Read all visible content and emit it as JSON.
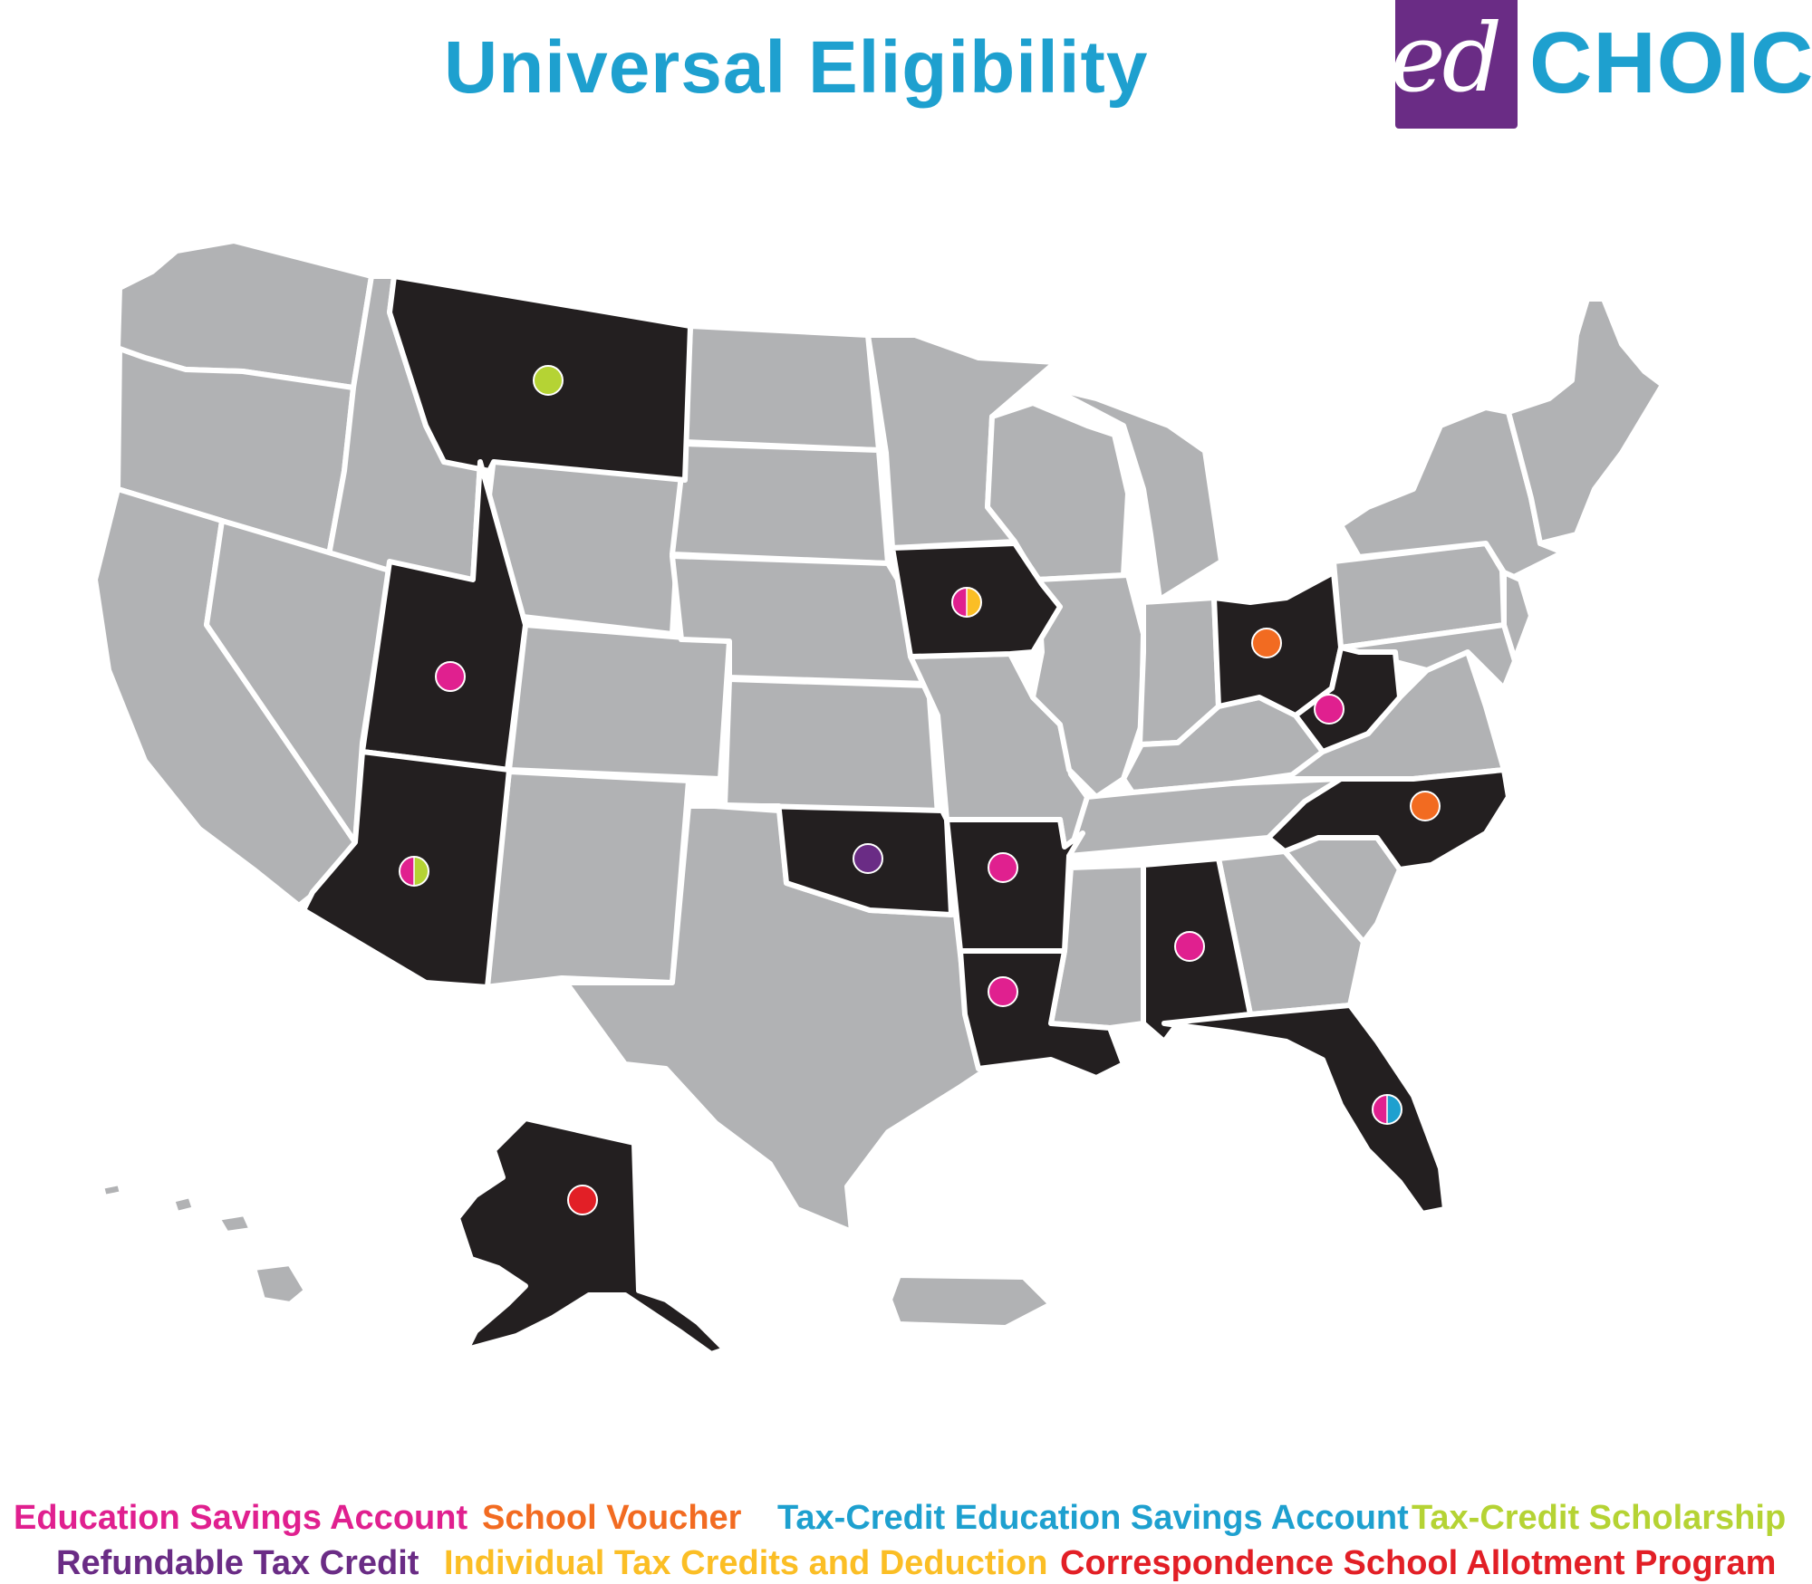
{
  "title": "Universal Eligibility",
  "logo": {
    "ed": "ed",
    "choice": "CHOICE"
  },
  "colors": {
    "background": "#ffffff",
    "state_default": "#b1b2b4",
    "state_eligible": "#231f20",
    "border": "#ffffff",
    "title": "#1ea0cf",
    "logo_box": "#6a2c85"
  },
  "legend": [
    {
      "key": "esa",
      "label": "Education Savings Account",
      "color": "#e0208f"
    },
    {
      "key": "voucher",
      "label": "School Voucher",
      "color": "#f26b21"
    },
    {
      "key": "tc_esa",
      "label": "Tax-Credit Education Savings Account",
      "color": "#1ea0cf"
    },
    {
      "key": "tcs",
      "label": "Tax-Credit Scholarship",
      "color": "#b5d334"
    },
    {
      "key": "rtc",
      "label": "Refundable Tax Credit",
      "color": "#6a2c85"
    },
    {
      "key": "itcd",
      "label": "Individual Tax Credits and Deduction",
      "color": "#fbbe25"
    },
    {
      "key": "csap",
      "label": "Correspondence School Allotment Program",
      "color": "#e21f26"
    }
  ],
  "universal_states": [
    {
      "state": "Montana",
      "programs": [
        "tcs"
      ]
    },
    {
      "state": "Utah",
      "programs": [
        "esa"
      ]
    },
    {
      "state": "Arizona",
      "programs": [
        "esa",
        "tcs"
      ]
    },
    {
      "state": "Iowa",
      "programs": [
        "esa",
        "itcd"
      ]
    },
    {
      "state": "Oklahoma",
      "programs": [
        "rtc"
      ]
    },
    {
      "state": "Arkansas",
      "programs": [
        "esa"
      ]
    },
    {
      "state": "Louisiana",
      "programs": [
        "esa"
      ]
    },
    {
      "state": "Alabama",
      "programs": [
        "esa"
      ]
    },
    {
      "state": "Florida",
      "programs": [
        "esa",
        "tc_esa"
      ]
    },
    {
      "state": "Ohio",
      "programs": [
        "voucher"
      ]
    },
    {
      "state": "West Virginia",
      "programs": [
        "esa"
      ]
    },
    {
      "state": "North Carolina",
      "programs": [
        "voucher"
      ]
    },
    {
      "state": "Alaska",
      "programs": [
        "csap"
      ]
    }
  ]
}
